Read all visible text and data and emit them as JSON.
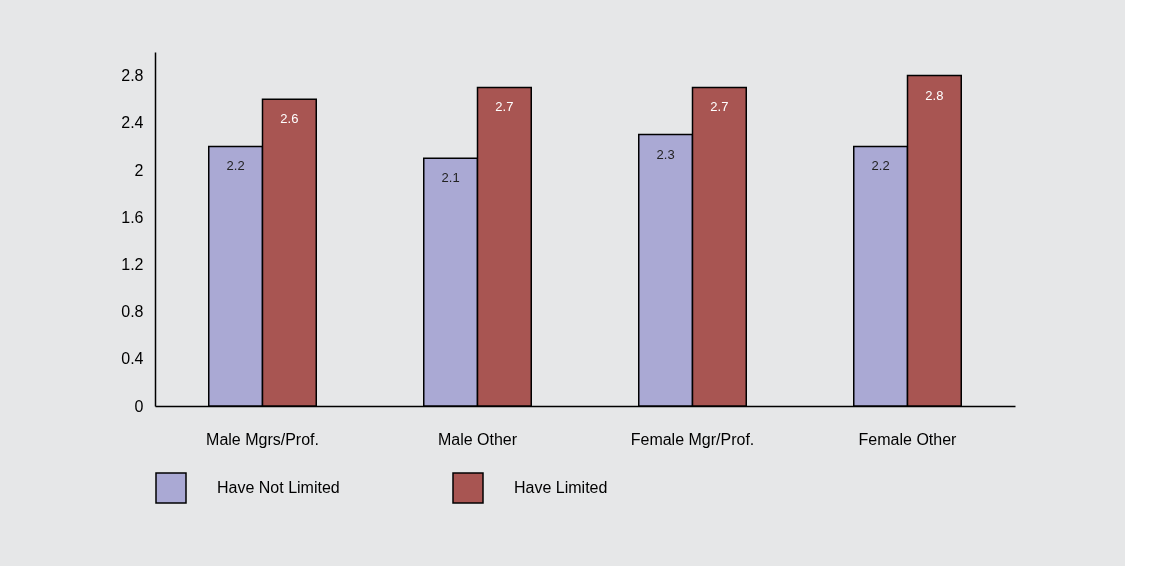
{
  "chart_data": {
    "type": "bar",
    "categories": [
      "Male Mgrs/Prof.",
      "Male Other",
      "Female Mgr/Prof.",
      "Female Other"
    ],
    "series": [
      {
        "name": "Have Not Limited",
        "color": "#aaa9d4",
        "values": [
          2.2,
          2.1,
          2.3,
          2.2
        ]
      },
      {
        "name": "Have Limited",
        "color": "#a85552",
        "values": [
          2.6,
          2.7,
          2.7,
          2.8
        ]
      }
    ],
    "ylim": [
      0,
      3
    ],
    "yticks": [
      0,
      0.4,
      0.8,
      1.2,
      1.6,
      2,
      2.4,
      2.8
    ],
    "grid": false,
    "legend": "bottom",
    "data_labels": true
  }
}
